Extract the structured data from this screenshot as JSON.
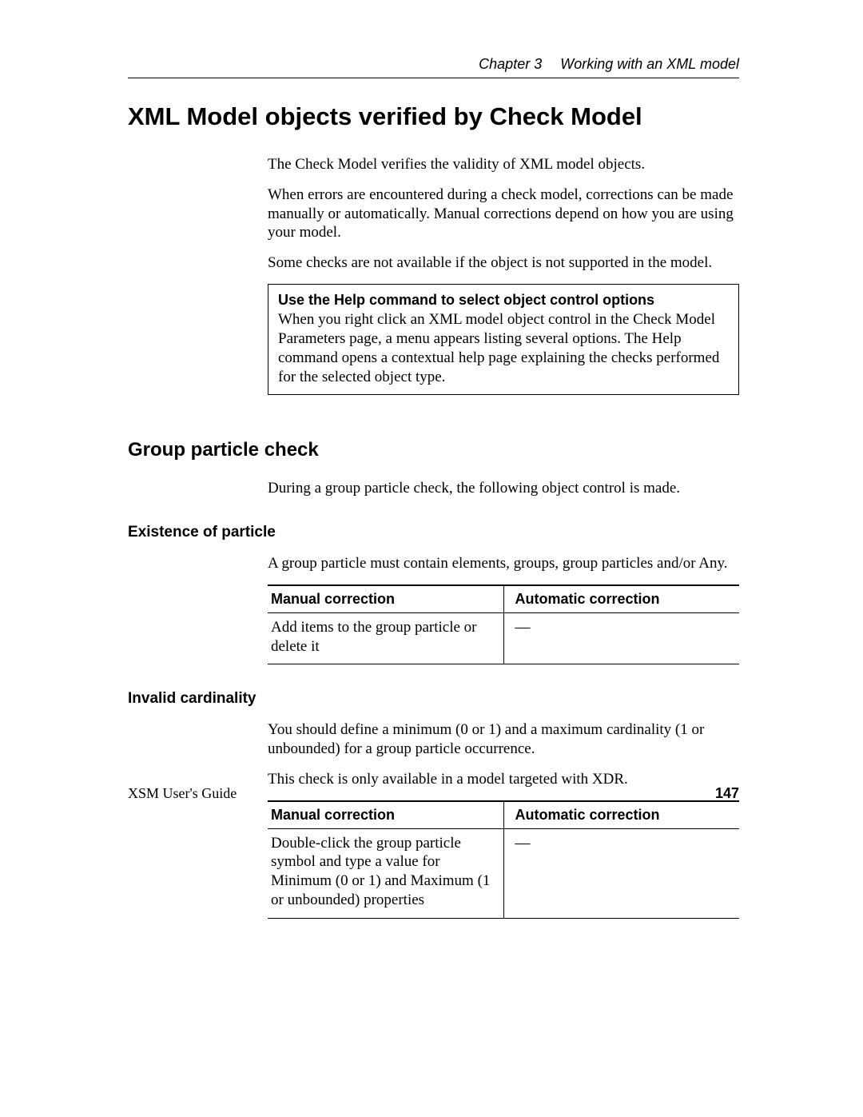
{
  "header": {
    "chapter": "Chapter 3",
    "section": "Working with an XML model"
  },
  "title": "XML Model objects verified by Check Model",
  "intro": {
    "p1": "The Check Model verifies the validity of XML model objects.",
    "p2": "When errors are encountered during a check model, corrections can be made manually or automatically. Manual corrections depend on how you are using your model.",
    "p3": "Some checks are not available if the object is not supported in the model."
  },
  "note": {
    "title": "Use the Help command to select object control options",
    "body": "When you right click an XML model object control in the Check Model Parameters page, a menu appears listing several options. The Help command opens a contextual help page explaining the checks performed for the selected object type."
  },
  "group": {
    "heading": "Group particle check",
    "intro": "During a group particle check, the following object control is made.",
    "existence": {
      "heading": "Existence of particle",
      "text": "A group particle must contain elements, groups, group particles and/or Any.",
      "table": {
        "h1": "Manual correction",
        "h2": "Automatic correction",
        "c1": "Add items to the group particle or delete it",
        "c2": "—"
      }
    },
    "invalid": {
      "heading": "Invalid cardinality",
      "p1": "You should define a minimum (0 or 1) and a maximum cardinality (1 or unbounded) for a group particle occurrence.",
      "p2": "This check is only available in a model targeted with XDR.",
      "table": {
        "h1": "Manual correction",
        "h2": "Automatic correction",
        "c1": "Double-click the group particle symbol and type a value for Minimum (0 or 1) and Maximum (1 or unbounded) properties",
        "c2": "—"
      }
    }
  },
  "footer": {
    "guide": "XSM User's Guide",
    "page": "147"
  }
}
